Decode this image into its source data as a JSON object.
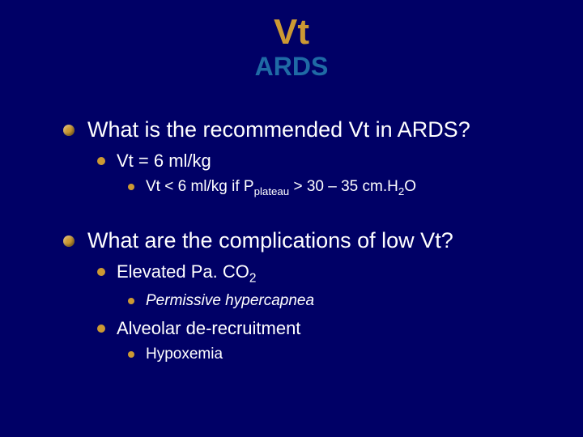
{
  "colors": {
    "background": "#000066",
    "title": "#cc9933",
    "subtitle": "#1f6aa5",
    "text": "#ffffff",
    "bullet": "#cc9933"
  },
  "typography": {
    "family": "Arial",
    "title_size_pt": 44,
    "subtitle_size_pt": 32,
    "l1_size_pt": 27,
    "l2_size_pt": 22,
    "l3_size_pt": 19
  },
  "title": "Vt",
  "subtitle": "ARDS",
  "items": [
    {
      "level": 1,
      "text": "What is the recommended Vt in ARDS?"
    },
    {
      "level": 2,
      "text": "Vt = 6 ml/kg"
    },
    {
      "level": 3,
      "html": "Vt < 6 ml/kg if P<sub>plateau</sub> > 30 – 35 cm.H<sub>2</sub>O"
    },
    {
      "level": 1,
      "spacer": true,
      "text": "What are the complications of low Vt?"
    },
    {
      "level": 2,
      "html": "Elevated Pa. CO<sub>2</sub>"
    },
    {
      "level": 3,
      "italic": true,
      "text": "Permissive hypercapnea"
    },
    {
      "level": 2,
      "text": "Alveolar de-recruitment"
    },
    {
      "level": 3,
      "text": "Hypoxemia"
    }
  ]
}
